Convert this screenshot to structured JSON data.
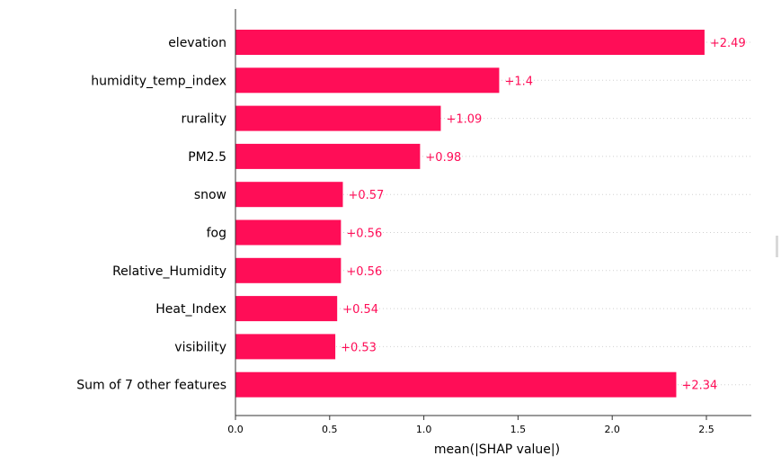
{
  "chart_data": {
    "type": "bar",
    "orientation": "horizontal",
    "categories": [
      "elevation",
      "humidity_temp_index",
      "rurality",
      "PM2.5",
      "snow",
      "fog",
      "Relative_Humidity",
      "Heat_Index",
      "visibility",
      "Sum of 7 other features"
    ],
    "values": [
      2.49,
      1.4,
      1.09,
      0.98,
      0.57,
      0.56,
      0.56,
      0.54,
      0.53,
      2.34
    ],
    "value_labels": [
      "+2.49",
      "+1.4",
      "+1.09",
      "+0.98",
      "+0.57",
      "+0.56",
      "+0.56",
      "+0.54",
      "+0.53",
      "+2.34"
    ],
    "xlabel": "mean(|SHAP value|)",
    "ylabel": "",
    "xlim": [
      0,
      2.75
    ],
    "xticks": [
      0.0,
      0.5,
      1.0,
      1.5,
      2.0,
      2.5
    ],
    "xtick_labels": [
      "0.0",
      "0.5",
      "1.0",
      "1.5",
      "2.0",
      "2.5"
    ],
    "grid": "dotted horizontal guide lines per row",
    "colors": {
      "bar": "#ff0d57",
      "value_text": "#ff0d57",
      "axis": "#333333",
      "grid": "#d0d0d0"
    }
  }
}
